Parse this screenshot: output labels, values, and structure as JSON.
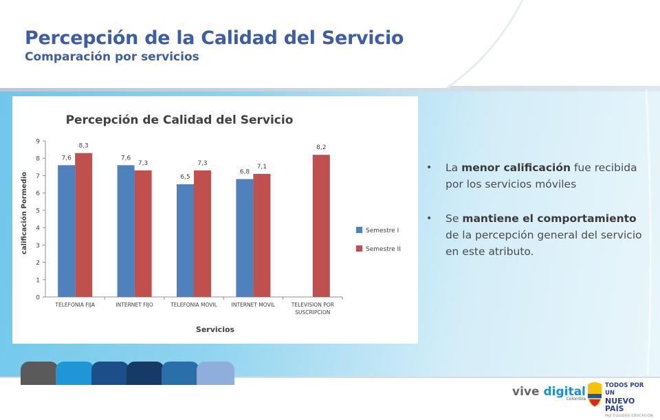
{
  "header": {
    "title": "Percepción de la Calidad del Servicio",
    "subtitle": "Comparación por servicios"
  },
  "bullets": [
    {
      "pre": "La ",
      "bold": "menor calificación",
      "post": " fue recibida por los servicios móviles"
    },
    {
      "pre": "Se ",
      "bold": "mantiene el comportamiento",
      "post": " de la percepción general del servicio en este atributo."
    }
  ],
  "logos": {
    "vive_a": "vive ",
    "vive_b": "digital",
    "vive_country": "Colombia",
    "pais_l1": "TODOS POR UN",
    "pais_l2": "NUEVO PAÍS",
    "pais_l3": "PAZ  EQUIDAD  EDUCACIÓN"
  },
  "colors": {
    "title": "#3d5ea4",
    "series1": "#4f81bd",
    "series2": "#c0504d",
    "tabs": [
      "#5a5a5a",
      "#1f97d6",
      "#1c4f8a",
      "#153a66",
      "#2a6fa8",
      "#8faedb"
    ]
  },
  "chart_data": {
    "type": "bar",
    "title": "Percepción de Calidad del Servicio",
    "xlabel": "Servicios",
    "ylabel": "calificación Pormedio",
    "ylim": [
      0,
      9
    ],
    "yticks": [
      0,
      1,
      2,
      3,
      4,
      5,
      6,
      7,
      8,
      9
    ],
    "categories": [
      "TELEFONIA FIJA",
      "INTERNET FIJO",
      "TELEFONIA MOVIL",
      "INTERNET MOVIL",
      "TELEVISION POR SUSCRIPCION"
    ],
    "series": [
      {
        "name": "Semestre I",
        "values": [
          7.6,
          7.6,
          6.5,
          6.8,
          null
        ],
        "labels": [
          "7,6",
          "7,6",
          "6,5",
          "6,8",
          ""
        ]
      },
      {
        "name": "Semestre II",
        "values": [
          8.3,
          7.3,
          7.3,
          7.1,
          8.2
        ],
        "labels": [
          "8,3",
          "7,3",
          "7,3",
          "7,1",
          "8,2"
        ]
      }
    ],
    "legend_position": "right",
    "grid": false
  }
}
